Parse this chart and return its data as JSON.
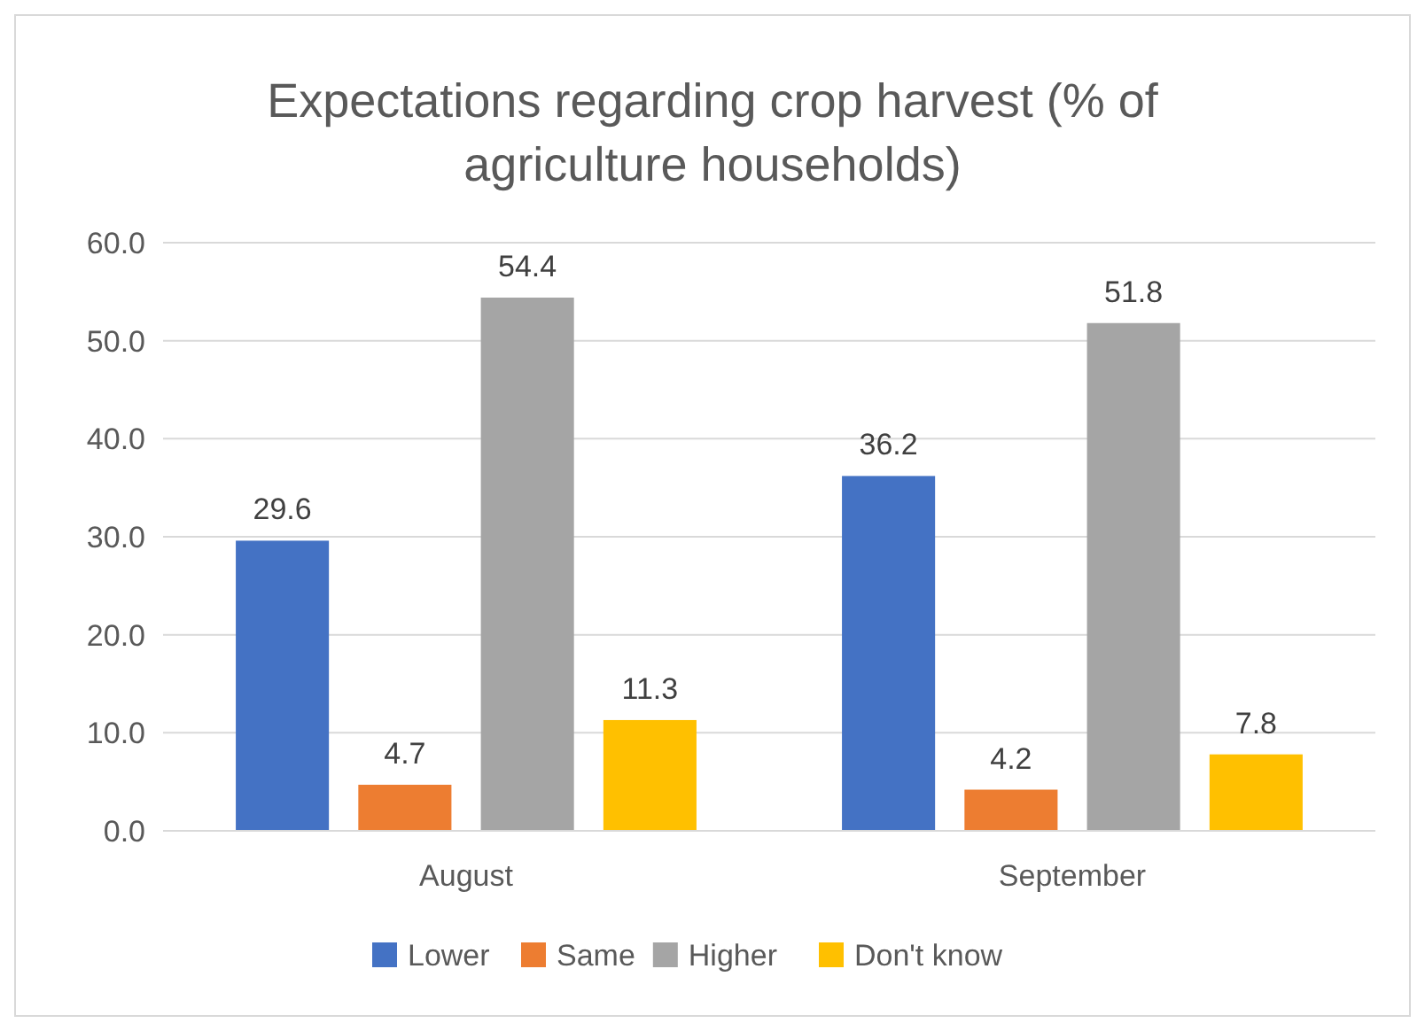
{
  "chart_data": {
    "type": "bar",
    "title": "Expectations regarding crop harvest (% of agriculture households)",
    "categories": [
      "August",
      "September"
    ],
    "series": [
      {
        "name": "Lower",
        "color": "#4472c4",
        "values": [
          29.6,
          36.2
        ]
      },
      {
        "name": "Same",
        "color": "#ed7d31",
        "values": [
          4.7,
          4.2
        ]
      },
      {
        "name": "Higher",
        "color": "#a5a5a5",
        "values": [
          54.4,
          51.8
        ]
      },
      {
        "name": "Don't know",
        "color": "#ffc000",
        "values": [
          11.3,
          7.8
        ]
      }
    ],
    "ylim": [
      0,
      60
    ],
    "yticks": [
      {
        "value": 0,
        "label": "0.0"
      },
      {
        "value": 10,
        "label": "10.0"
      },
      {
        "value": 20,
        "label": "20.0"
      },
      {
        "value": 30,
        "label": "30.0"
      },
      {
        "value": 40,
        "label": "40.0"
      },
      {
        "value": 50,
        "label": "50.0"
      },
      {
        "value": 60,
        "label": "60.0"
      }
    ],
    "grid": "y",
    "data_labels": true,
    "legend": "bottom"
  }
}
